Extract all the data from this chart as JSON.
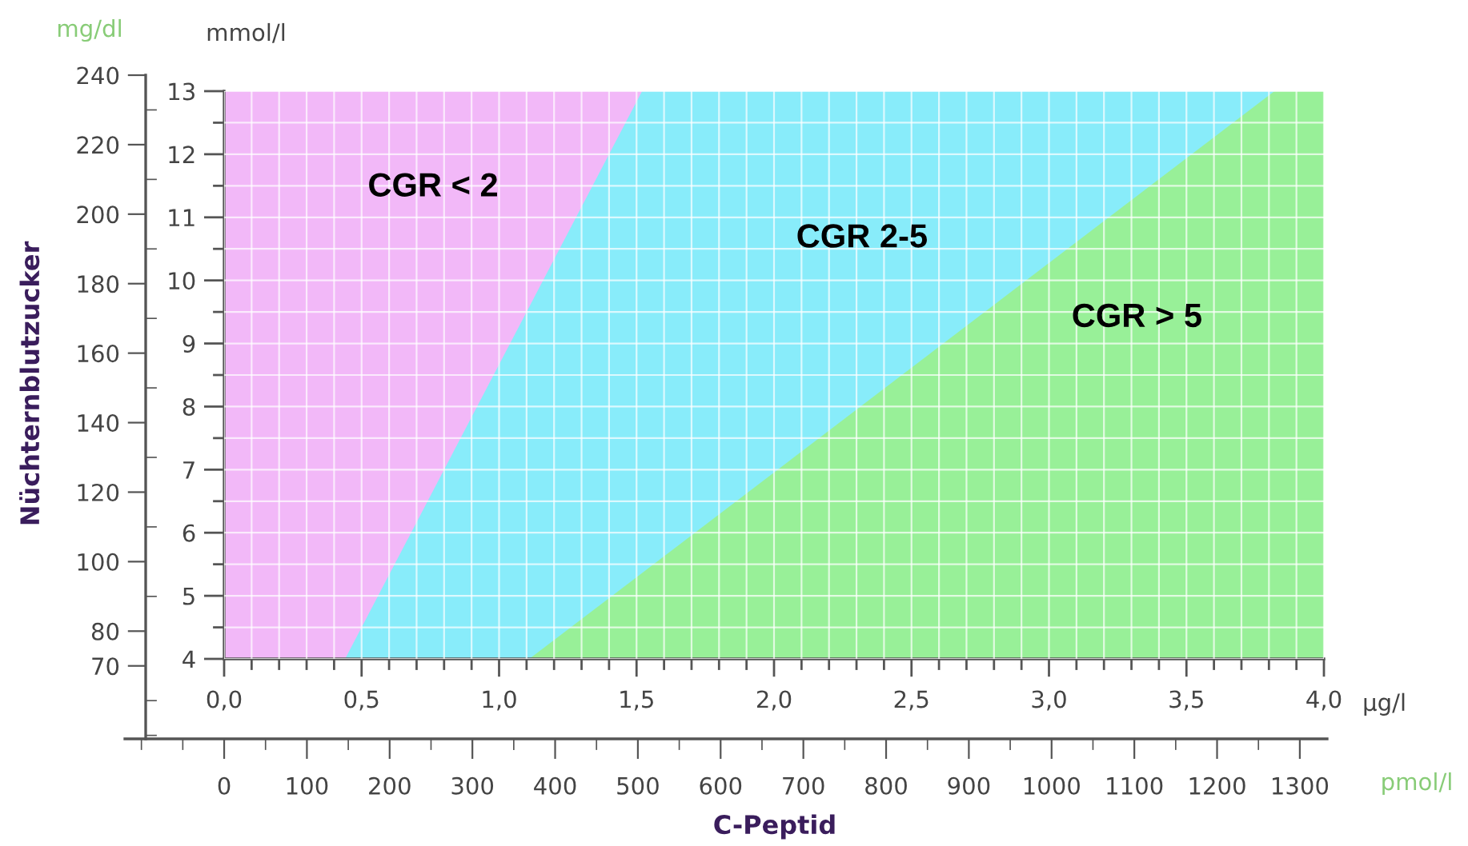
{
  "chart_data": {
    "type": "area",
    "x": [
      0,
      1.52
    ],
    "series": [
      {
        "name": "CGR < 2",
        "color": "#f2b8f8",
        "values": [
          13,
          13
        ]
      },
      {
        "name": "CGR 2-5",
        "color": "#88ecfa",
        "x": [
          0.44,
          1.52,
          3.82
        ],
        "values": [
          4,
          13,
          13
        ]
      },
      {
        "name": "CGR > 5",
        "color": "#98f098",
        "x": [
          1.11,
          3.82,
          4.0
        ],
        "values": [
          4,
          13,
          13
        ]
      }
    ],
    "xlabel": "µg/l",
    "ylabel": "mmol/l",
    "x2label": "pmol/l",
    "y2label": "mg/dl",
    "annotations": [
      "Nüchternblutzucker",
      "C-Peptid"
    ],
    "xlim": [
      0,
      4
    ],
    "xticks": [
      {
        "value": 0,
        "label": "0,0"
      },
      {
        "value": 0.5,
        "label": "0,5"
      },
      {
        "value": 1,
        "label": "1,0"
      },
      {
        "value": 1.5,
        "label": "1,5"
      },
      {
        "value": 2,
        "label": "2,0"
      },
      {
        "value": 2.5,
        "label": "2,5"
      },
      {
        "value": 3,
        "label": "3,0"
      },
      {
        "value": 3.5,
        "label": "3,5"
      },
      {
        "value": 4,
        "label": "4,0"
      }
    ],
    "ylim": [
      4,
      13
    ],
    "yticks": [
      4,
      5,
      6,
      7,
      8,
      9,
      10,
      11,
      12,
      13
    ],
    "x2lim": [
      -120,
      1333
    ],
    "x2ticks": [
      0,
      100,
      200,
      300,
      400,
      500,
      600,
      700,
      800,
      900,
      1000,
      1100,
      1200,
      1300
    ],
    "y2lim": [
      49,
      240
    ],
    "y2ticks": [
      70,
      80,
      100,
      120,
      140,
      160,
      180,
      200,
      220,
      240
    ],
    "grid": true,
    "legend": false
  }
}
